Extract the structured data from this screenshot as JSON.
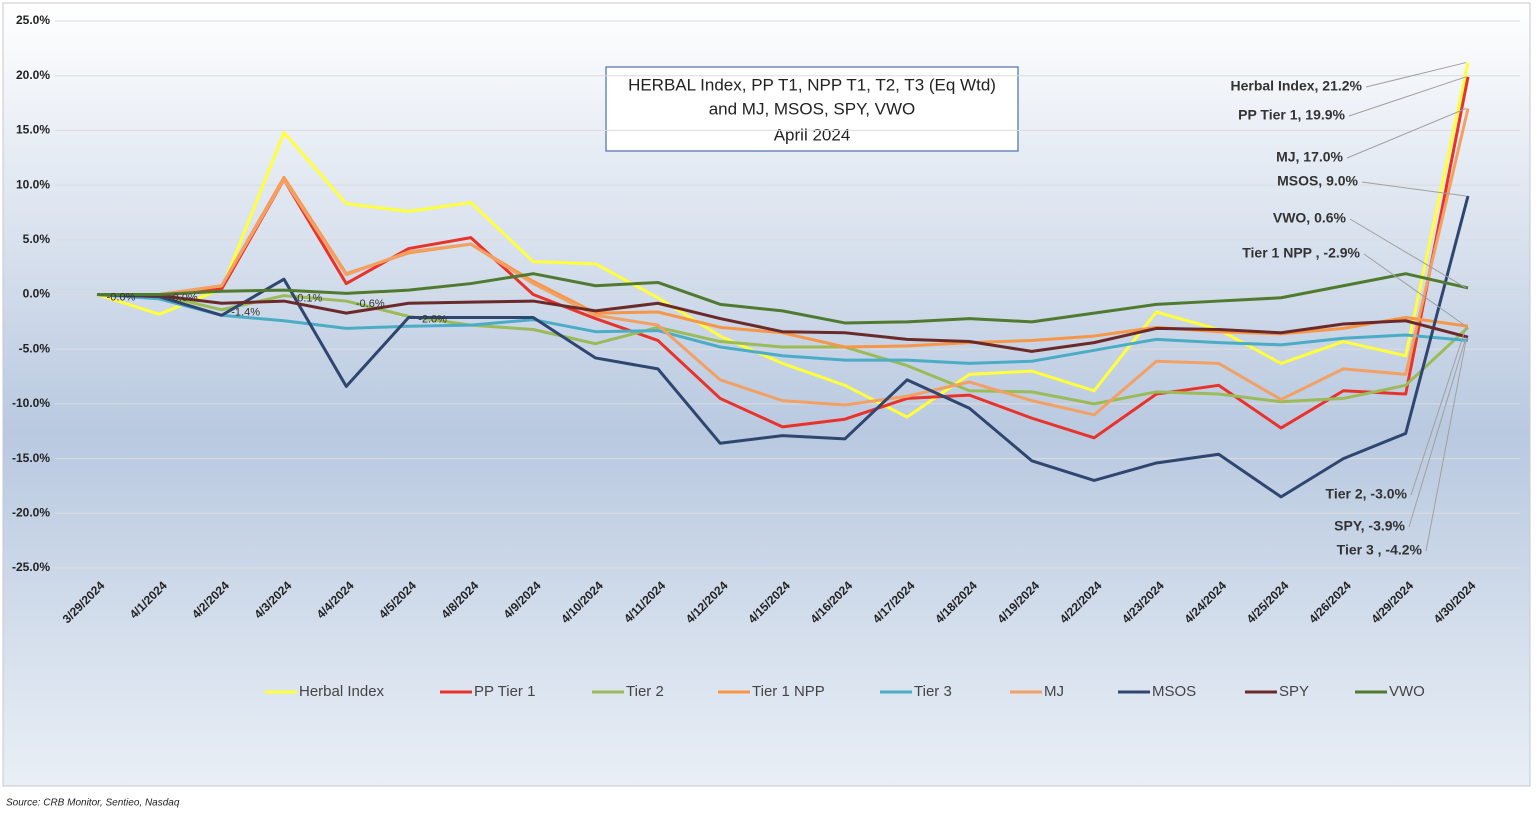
{
  "chart_data": {
    "type": "line",
    "title": [
      "HERBAL Index, PP T1, NPP T1, T2, T3  (Eq Wtd)",
      "and MJ, MSOS, SPY, VWO",
      "April 2024"
    ],
    "source": "Source: CRB Monitor, Sentieo, Nasdaq",
    "categories": [
      "3/29/2024",
      "4/1/2024",
      "4/2/2024",
      "4/3/2024",
      "4/4/2024",
      "4/5/2024",
      "4/8/2024",
      "4/9/2024",
      "4/10/2024",
      "4/11/2024",
      "4/12/2024",
      "4/15/2024",
      "4/16/2024",
      "4/17/2024",
      "4/18/2024",
      "4/19/2024",
      "4/22/2024",
      "4/23/2024",
      "4/24/2024",
      "4/25/2024",
      "4/26/2024",
      "4/29/2024",
      "4/30/2024"
    ],
    "ylim": [
      -25,
      25
    ],
    "yticks": [
      {
        "value": -25,
        "label": "-25.0%"
      },
      {
        "value": -20,
        "label": "-20.0%"
      },
      {
        "value": -15,
        "label": "-15.0%"
      },
      {
        "value": -10,
        "label": "-10.0%"
      },
      {
        "value": -5,
        "label": "-5.0%"
      },
      {
        "value": 0,
        "label": "0.0%"
      },
      {
        "value": 5,
        "label": "5.0%"
      },
      {
        "value": 10,
        "label": "10.0%"
      },
      {
        "value": 15,
        "label": "15.0%"
      },
      {
        "value": 20,
        "label": "20.0%"
      },
      {
        "value": 25,
        "label": "25.0%"
      }
    ],
    "grid": true,
    "legend": "bottom",
    "series": [
      {
        "name": "Herbal Index",
        "color": "#ffff3c",
        "values": [
          0,
          -1.8,
          0.5,
          14.8,
          8.3,
          7.6,
          8.4,
          3.0,
          2.8,
          -0.3,
          -3.8,
          -6.3,
          -8.3,
          -11.2,
          -7.3,
          -7.0,
          -8.8,
          -1.6,
          -3.2,
          -6.3,
          -4.3,
          -5.6,
          21.2
        ]
      },
      {
        "name": "PP Tier 1",
        "color": "#e8322a",
        "values": [
          0,
          -0.1,
          0.5,
          10.5,
          1.0,
          4.2,
          5.2,
          0.0,
          -2.2,
          -4.2,
          -9.5,
          -12.1,
          -11.4,
          -9.5,
          -9.2,
          -11.3,
          -13.1,
          -9.1,
          -8.3,
          -12.2,
          -8.8,
          -9.1,
          19.9
        ]
      },
      {
        "name": "Tier 2",
        "color": "#9bbb59",
        "values": [
          0,
          -0.04,
          -1.4,
          -0.1,
          -0.6,
          -2.0,
          -2.8,
          -3.2,
          -4.5,
          -3.0,
          -4.3,
          -4.8,
          -4.8,
          -6.5,
          -8.8,
          -8.9,
          -10.0,
          -8.9,
          -9.1,
          -9.8,
          -9.5,
          -8.3,
          -3.0
        ],
        "value_labels": [
          "-0.0%",
          "-0.0%",
          "-1.4%",
          "-0.1%",
          "-0.6%",
          "-2.0%",
          null,
          null,
          null,
          null,
          null,
          null,
          null,
          null,
          null,
          null,
          null,
          null,
          null,
          null,
          null,
          null,
          null
        ]
      },
      {
        "name": "Tier 1 NPP",
        "color": "#f79646",
        "values": [
          0,
          0,
          0.8,
          10.7,
          1.9,
          3.8,
          4.6,
          1.2,
          -1.7,
          -1.6,
          -3.0,
          -3.5,
          -4.8,
          -4.7,
          -4.4,
          -4.2,
          -3.8,
          -3.0,
          -3.4,
          -3.6,
          -3.1,
          -2.1,
          -2.9
        ]
      },
      {
        "name": "Tier 3",
        "color": "#4bacc6",
        "values": [
          0,
          -0.4,
          -1.9,
          -2.4,
          -3.1,
          -2.9,
          -2.8,
          -2.3,
          -3.4,
          -3.3,
          -4.8,
          -5.6,
          -6.0,
          -6.0,
          -6.3,
          -6.1,
          -5.1,
          -4.1,
          -4.4,
          -4.6,
          -4.0,
          -3.7,
          -4.2
        ]
      },
      {
        "name": "MJ",
        "color": "#f2a064",
        "values": [
          0,
          0,
          0.8,
          10.5,
          1.8,
          3.9,
          4.6,
          1.0,
          -1.9,
          -2.8,
          -7.8,
          -9.7,
          -10.1,
          -9.3,
          -8.0,
          -9.7,
          -11.0,
          -6.1,
          -6.3,
          -9.6,
          -6.8,
          -7.3,
          17.0
        ]
      },
      {
        "name": "MSOS",
        "color": "#2e4670",
        "values": [
          0,
          -0.2,
          -1.9,
          1.4,
          -8.4,
          -2.1,
          -2.1,
          -2.1,
          -5.8,
          -6.8,
          -13.6,
          -12.9,
          -13.2,
          -7.8,
          -10.4,
          -15.2,
          -17.0,
          -15.4,
          -14.6,
          -18.5,
          -15.0,
          -12.7,
          9.0
        ]
      },
      {
        "name": "SPY",
        "color": "#6b2a2a",
        "values": [
          0,
          -0.1,
          -0.8,
          -0.6,
          -1.7,
          -0.8,
          -0.7,
          -0.6,
          -1.5,
          -0.8,
          -2.2,
          -3.4,
          -3.5,
          -4.1,
          -4.3,
          -5.2,
          -4.4,
          -3.1,
          -3.2,
          -3.5,
          -2.7,
          -2.4,
          -3.9
        ]
      },
      {
        "name": "VWO",
        "color": "#4f7a2f",
        "values": [
          0,
          0,
          0.3,
          0.4,
          0.1,
          0.4,
          1.0,
          1.9,
          0.8,
          1.1,
          -0.9,
          -1.5,
          -2.6,
          -2.5,
          -2.2,
          -2.5,
          -1.7,
          -0.9,
          -0.6,
          -0.3,
          0.8,
          1.9,
          0.6
        ]
      }
    ],
    "annotations": [
      "Herbal Index, 21.2%",
      "PP Tier 1, 19.9%",
      "MJ, 17.0%",
      "MSOS, 9.0%",
      "VWO, 0.6%",
      "Tier 1 NPP , -2.9%",
      "Tier 2, -3.0%",
      "SPY, -3.9%",
      "Tier 3 , -4.2%"
    ]
  }
}
